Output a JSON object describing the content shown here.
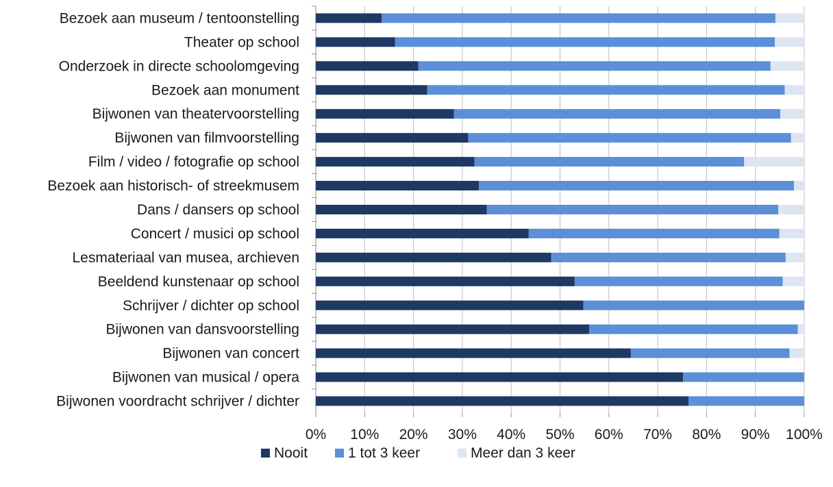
{
  "chart_data": {
    "type": "bar",
    "orientation": "horizontal",
    "stacked": true,
    "percent_stacked": true,
    "categories": [
      "Bezoek aan museum / tentoonstelling",
      "Theater op school",
      "Onderzoek in directe schoolomgeving",
      "Bezoek aan monument",
      "Bijwonen van theatervoorstelling",
      "Bijwonen van filmvoorstelling",
      "Film / video / fotografie op school",
      "Bezoek aan historisch- of streekmusem",
      "Dans / dansers op school",
      "Concert / musici op school",
      "Lesmateriaal van musea, archieven",
      "Beeldend kunstenaar op school",
      "Schrijver / dichter op school",
      "Bijwonen van dansvoorstelling",
      "Bijwonen van concert",
      "Bijwonen van musical / opera",
      "Bijwonen voordracht schrijver / dichter"
    ],
    "series": [
      {
        "name": "Nooit",
        "color": "#1f3864",
        "values": [
          13.5,
          16.2,
          21,
          22.8,
          28.3,
          31.2,
          32.5,
          33.4,
          35,
          43.6,
          48.2,
          53,
          54.8,
          56,
          64.5,
          75.2,
          76.3
        ]
      },
      {
        "name": "1 tot 3 keer",
        "color": "#5b8fd8",
        "values": [
          80.6,
          77.8,
          72.1,
          73.2,
          66.8,
          66.1,
          55.2,
          64.5,
          59.7,
          51.3,
          48,
          42.6,
          45.2,
          42.7,
          32.5,
          24.8,
          23.7
        ]
      },
      {
        "name": "Meer dan 3 keer",
        "color": "#dce6f2",
        "values": [
          5.9,
          6,
          6.9,
          4,
          4.9,
          2.7,
          12.3,
          2.1,
          5.3,
          5.1,
          3.8,
          4.4,
          0,
          1.3,
          3,
          0,
          0
        ]
      }
    ],
    "xlim": [
      0,
      100
    ],
    "x_ticks": [
      "0%",
      "10%",
      "20%",
      "30%",
      "40%",
      "50%",
      "60%",
      "70%",
      "80%",
      "90%",
      "100%"
    ],
    "grid": true,
    "legend_position": "bottom",
    "title": "",
    "xlabel": "",
    "ylabel": ""
  }
}
